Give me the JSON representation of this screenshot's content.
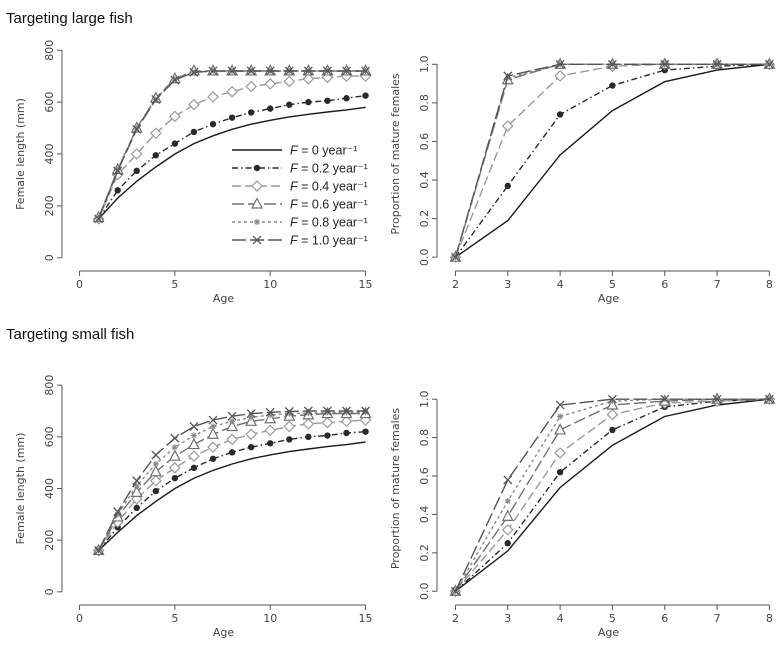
{
  "section_titles": [
    "Targeting large fish",
    "Targeting small fish"
  ],
  "legend": [
    {
      "label": "F = 0 year⁻¹",
      "f": "F",
      "rest": " = 0 year⁻¹",
      "series": "F0"
    },
    {
      "label": "F = 0.2 year⁻¹",
      "f": "F",
      "rest": " = 0.2 year⁻¹",
      "series": "F02"
    },
    {
      "label": "F = 0.4 year⁻¹",
      "f": "F",
      "rest": " = 0.4 year⁻¹",
      "series": "F04"
    },
    {
      "label": "F = 0.6 year⁻¹",
      "f": "F",
      "rest": " = 0.6 year⁻¹",
      "series": "F06"
    },
    {
      "label": "F = 0.8 year⁻¹",
      "f": "F",
      "rest": " = 0.8 year⁻¹",
      "series": "F08"
    },
    {
      "label": "F = 1.0 year⁻¹",
      "f": "F",
      "rest": " = 1.0 year⁻¹",
      "series": "F10"
    }
  ],
  "series_styles": {
    "F0": {
      "color": "#1a1a1a",
      "dash": "",
      "marker": "none"
    },
    "F02": {
      "color": "#2a2a2a",
      "dash": "6 3 1.5 3",
      "marker": "dot"
    },
    "F04": {
      "color": "#9a9a9a",
      "dash": "9 4",
      "marker": "diamond"
    },
    "F06": {
      "color": "#707070",
      "dash": "12 4",
      "marker": "triangle"
    },
    "F08": {
      "color": "#8a8a8a",
      "dash": "3 3",
      "marker": "star"
    },
    "F10": {
      "color": "#555555",
      "dash": "14 4",
      "marker": "x"
    }
  },
  "chart_data": [
    {
      "type": "line",
      "group": "Targeting large fish",
      "xlabel": "Age",
      "ylabel": "Female length (mm)",
      "xlim": [
        -0.5,
        15.6
      ],
      "ylim": [
        -20,
        820
      ],
      "xticks": [
        0,
        5,
        10,
        15
      ],
      "yticks": [
        0,
        200,
        400,
        600,
        800
      ],
      "legend_position": "center-right",
      "x": [
        1,
        2,
        3,
        4,
        5,
        6,
        7,
        8,
        9,
        10,
        11,
        12,
        13,
        14,
        15
      ],
      "series": [
        {
          "name": "F = 0 year⁻¹",
          "key": "F0",
          "values": [
            150,
            230,
            295,
            350,
            400,
            440,
            470,
            495,
            515,
            530,
            543,
            553,
            562,
            570,
            580
          ]
        },
        {
          "name": "F = 0.2 year⁻¹",
          "key": "F02",
          "values": [
            150,
            260,
            335,
            395,
            440,
            485,
            515,
            540,
            560,
            575,
            590,
            600,
            605,
            615,
            625
          ]
        },
        {
          "name": "F = 0.4 year⁻¹",
          "key": "F04",
          "values": [
            150,
            320,
            400,
            480,
            545,
            590,
            620,
            640,
            660,
            670,
            680,
            690,
            695,
            700,
            700
          ]
        },
        {
          "name": "F = 0.6 year⁻¹",
          "key": "F06",
          "values": [
            155,
            340,
            500,
            615,
            690,
            720,
            720,
            720,
            720,
            720,
            720,
            720,
            720,
            720,
            720
          ]
        },
        {
          "name": "F = 0.8 year⁻¹",
          "key": "F08",
          "values": [
            155,
            340,
            500,
            610,
            690,
            715,
            720,
            720,
            720,
            720,
            720,
            720,
            720,
            720,
            720
          ]
        },
        {
          "name": "F = 1.0 year⁻¹",
          "key": "F10",
          "values": [
            150,
            335,
            495,
            610,
            685,
            715,
            720,
            720,
            720,
            720,
            720,
            720,
            720,
            720,
            720
          ]
        }
      ]
    },
    {
      "type": "line",
      "group": "Targeting large fish",
      "xlabel": "Age",
      "ylabel": "Proportion of mature females",
      "xlim": [
        1.8,
        8.05
      ],
      "ylim": [
        -0.03,
        1.1
      ],
      "xticks": [
        2,
        3,
        4,
        5,
        6,
        7,
        8
      ],
      "yticks": [
        "0.0",
        "0.2",
        "0.4",
        "0.6",
        "0.8",
        "1.0"
      ],
      "x": [
        2,
        3,
        4,
        5,
        6,
        7,
        8
      ],
      "series": [
        {
          "name": "F = 0 year⁻¹",
          "key": "F0",
          "values": [
            0.0,
            0.19,
            0.53,
            0.76,
            0.91,
            0.97,
            1.0
          ]
        },
        {
          "name": "F = 0.2 year⁻¹",
          "key": "F02",
          "values": [
            0.0,
            0.37,
            0.74,
            0.89,
            0.97,
            0.99,
            1.0
          ]
        },
        {
          "name": "F = 0.4 year⁻¹",
          "key": "F04",
          "values": [
            0.0,
            0.68,
            0.94,
            0.99,
            1.0,
            1.0,
            1.0
          ]
        },
        {
          "name": "F = 0.6 year⁻¹",
          "key": "F06",
          "values": [
            0.0,
            0.92,
            1.0,
            1.0,
            1.0,
            1.0,
            1.0
          ]
        },
        {
          "name": "F = 0.8 year⁻¹",
          "key": "F08",
          "values": [
            0.0,
            0.93,
            1.0,
            1.0,
            1.0,
            1.0,
            1.0
          ]
        },
        {
          "name": "F = 1.0 year⁻¹",
          "key": "F10",
          "values": [
            0.0,
            0.94,
            1.0,
            1.0,
            1.0,
            1.0,
            1.0
          ]
        }
      ]
    },
    {
      "type": "line",
      "group": "Targeting small fish",
      "xlabel": "Age",
      "ylabel": "Female length (mm)",
      "xlim": [
        -0.5,
        15.6
      ],
      "ylim": [
        -20,
        820
      ],
      "xticks": [
        0,
        5,
        10,
        15
      ],
      "yticks": [
        0,
        200,
        400,
        600,
        800
      ],
      "x": [
        1,
        2,
        3,
        4,
        5,
        6,
        7,
        8,
        9,
        10,
        11,
        12,
        13,
        14,
        15
      ],
      "series": [
        {
          "name": "F = 0 year⁻¹",
          "key": "F0",
          "values": [
            160,
            230,
            295,
            350,
            400,
            440,
            470,
            495,
            515,
            530,
            543,
            553,
            562,
            570,
            580
          ]
        },
        {
          "name": "F = 0.2 year⁻¹",
          "key": "F02",
          "values": [
            160,
            250,
            325,
            390,
            440,
            480,
            515,
            540,
            560,
            575,
            590,
            600,
            605,
            615,
            620
          ]
        },
        {
          "name": "F = 0.4 year⁻¹",
          "key": "F04",
          "values": [
            160,
            270,
            360,
            430,
            480,
            525,
            560,
            590,
            610,
            625,
            640,
            650,
            655,
            660,
            665
          ]
        },
        {
          "name": "F = 0.6 year⁻¹",
          "key": "F06",
          "values": [
            160,
            290,
            385,
            465,
            525,
            570,
            610,
            640,
            660,
            670,
            680,
            685,
            690,
            690,
            690
          ]
        },
        {
          "name": "F = 0.8 year⁻¹",
          "key": "F08",
          "values": [
            160,
            300,
            410,
            495,
            560,
            605,
            640,
            660,
            675,
            685,
            690,
            692,
            694,
            695,
            695
          ]
        },
        {
          "name": "F = 1.0 year⁻¹",
          "key": "F10",
          "values": [
            160,
            310,
            430,
            530,
            595,
            640,
            665,
            680,
            690,
            695,
            698,
            700,
            700,
            700,
            700
          ]
        }
      ]
    },
    {
      "type": "line",
      "group": "Targeting small fish",
      "xlabel": "Age",
      "ylabel": "Proportion of mature females",
      "xlim": [
        1.8,
        8.05
      ],
      "ylim": [
        -0.03,
        1.1
      ],
      "xticks": [
        2,
        3,
        4,
        5,
        6,
        7,
        8
      ],
      "yticks": [
        "0.0",
        "0.2",
        "0.4",
        "0.6",
        "0.8",
        "1.0"
      ],
      "x": [
        2,
        3,
        4,
        5,
        6,
        7,
        8
      ],
      "series": [
        {
          "name": "F = 0 year⁻¹",
          "key": "F0",
          "values": [
            0.0,
            0.21,
            0.54,
            0.76,
            0.91,
            0.97,
            1.0
          ]
        },
        {
          "name": "F = 0.2 year⁻¹",
          "key": "F02",
          "values": [
            0.0,
            0.25,
            0.62,
            0.84,
            0.96,
            0.99,
            1.0
          ]
        },
        {
          "name": "F = 0.4 year⁻¹",
          "key": "F04",
          "values": [
            0.0,
            0.32,
            0.72,
            0.92,
            0.98,
            0.99,
            1.0
          ]
        },
        {
          "name": "F = 0.6 year⁻¹",
          "key": "F06",
          "values": [
            0.0,
            0.39,
            0.84,
            0.97,
            0.99,
            1.0,
            1.0
          ]
        },
        {
          "name": "F = 0.8 year⁻¹",
          "key": "F08",
          "values": [
            0.0,
            0.47,
            0.91,
            0.99,
            1.0,
            1.0,
            1.0
          ]
        },
        {
          "name": "F = 1.0 year⁻¹",
          "key": "F10",
          "values": [
            0.0,
            0.58,
            0.97,
            1.0,
            1.0,
            1.0,
            1.0
          ]
        }
      ]
    }
  ]
}
